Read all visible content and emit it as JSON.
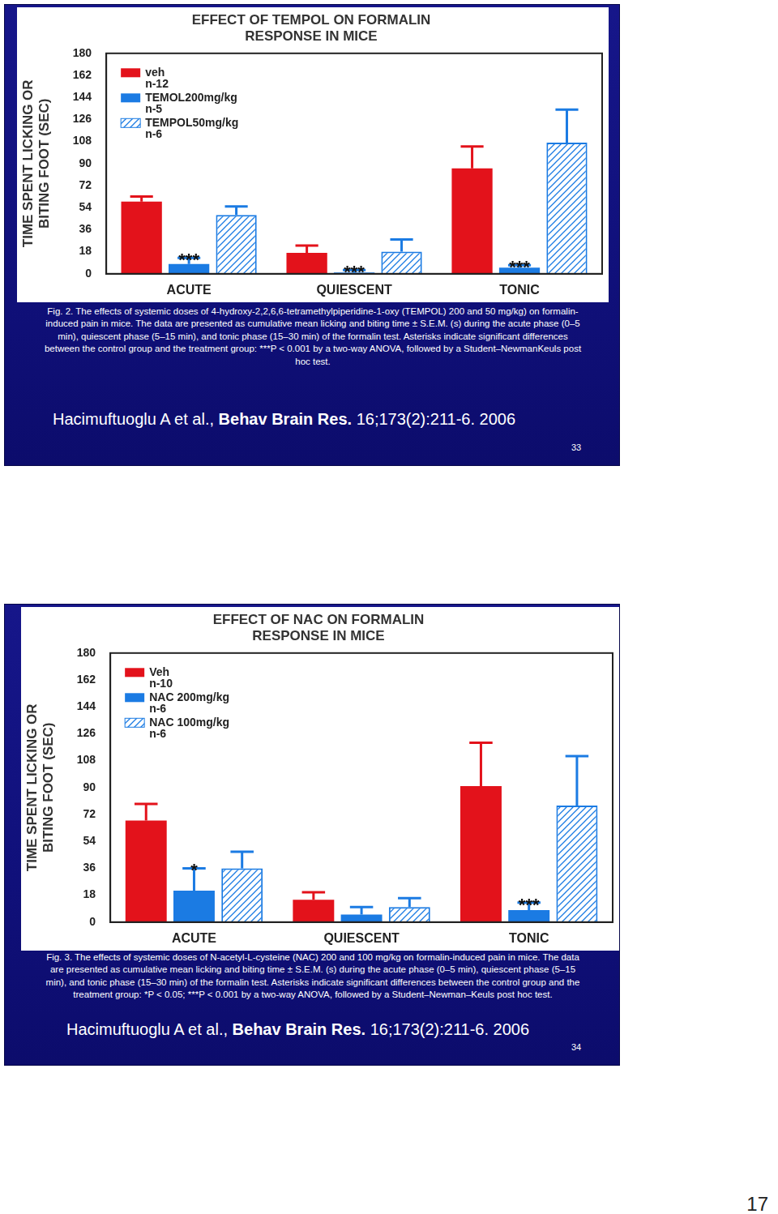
{
  "chart_data": [
    {
      "type": "bar",
      "title": [
        "EFFECT OF TEMPOL ON FORMALIN",
        "RESPONSE IN MICE"
      ],
      "y_label": [
        "TIME SPENT LICKING OR",
        "BITING FOOT (SEC)"
      ],
      "categories": [
        "ACUTE",
        "QUIESCENT",
        "TONIC"
      ],
      "series": [
        {
          "name": "veh",
          "n": "n-12",
          "color": "#e3121b",
          "marker": "solid",
          "values": [
            59,
            17,
            86
          ],
          "errors": [
            4,
            6,
            18
          ]
        },
        {
          "name": "TEMOL200mg/kg",
          "n": "n-5",
          "color": "#1b7be3",
          "marker": "solid",
          "values": [
            8,
            1,
            5
          ],
          "errors": [
            5,
            2,
            2
          ]
        },
        {
          "name": "TEMPOL50mg/kg",
          "n": "n-6",
          "color": "#1b7be3",
          "marker": "hatch",
          "values": [
            48,
            18,
            107
          ],
          "errors": [
            7,
            10,
            27
          ]
        }
      ],
      "annotations": [
        {
          "text": "***",
          "category": "ACUTE",
          "series": "TEMOL200mg/kg"
        },
        {
          "text": "***",
          "category": "QUIESCENT",
          "series": "TEMOL200mg/kg"
        },
        {
          "text": "***",
          "category": "TONIC",
          "series": "TEMOL200mg/kg"
        }
      ],
      "ylim": [
        0,
        180
      ],
      "yticks": [
        0,
        18,
        36,
        54,
        72,
        90,
        108,
        126,
        144,
        162,
        180
      ],
      "grid": false,
      "legend": "upper left"
    },
    {
      "type": "bar",
      "title": [
        "EFFECT OF NAC ON FORMALIN",
        "RESPONSE IN MICE"
      ],
      "y_label": [
        "TIME SPENT LICKING OR",
        "BITING FOOT (SEC)"
      ],
      "categories": [
        "ACUTE",
        "QUIESCENT",
        "TONIC"
      ],
      "series": [
        {
          "name": "Veh",
          "n": "n-10",
          "color": "#e3121b",
          "marker": "solid",
          "values": [
            68,
            15,
            91
          ],
          "errors": [
            11,
            5,
            29
          ]
        },
        {
          "name": "NAC 200mg/kg",
          "n": "n-6",
          "color": "#1b7be3",
          "marker": "solid",
          "values": [
            21,
            5,
            8
          ],
          "errors": [
            15,
            5,
            5
          ]
        },
        {
          "name": "NAC 100mg/kg",
          "n": "n-6",
          "color": "#1b7be3",
          "marker": "hatch",
          "values": [
            36,
            10,
            78
          ],
          "errors": [
            11,
            6,
            33
          ]
        }
      ],
      "annotations": [
        {
          "text": "*",
          "category": "ACUTE",
          "series": "NAC 200mg/kg"
        },
        {
          "text": "***",
          "category": "TONIC",
          "series": "NAC 200mg/kg"
        }
      ],
      "ylim": [
        0,
        180
      ],
      "yticks": [
        0,
        18,
        36,
        54,
        72,
        90,
        108,
        126,
        144,
        162,
        180
      ],
      "grid": false,
      "legend": "upper left"
    }
  ],
  "slides": [
    {
      "caption": "Fig. 2. The effects of systemic doses of 4-hydroxy-2,2,6,6-tetramethylpiperidine-1-oxy (TEMPOL) 200 and 50 mg/kg) on formalin-induced pain in mice. The data are presented as cumulative mean licking and biting time ± S.E.M. (s) during the acute phase (0–5 min), quiescent phase (5–15 min), and tonic phase (15–30 min) of the formalin test. Asterisks indicate significant differences between the control group and the treatment group: ***P < 0.001 by a two-way ANOVA, followed by a Student–NewmanKeuls post hoc test.",
      "citation": {
        "authors": "Hacimuftuoglu A et al.,",
        "journal": "Behav Brain Res.",
        "details": "16;173(2):211-6. 2006"
      },
      "slide_number": "33"
    },
    {
      "caption": "Fig. 3. The effects of systemic doses of N-acetyl-L-cysteine (NAC) 200 and 100 mg/kg on formalin-induced pain in mice. The data are presented as cumulative mean licking and biting time ± S.E.M. (s) during the acute phase (0–5 min), quiescent phase (5–15 min), and tonic phase (15–30 min) of the formalin test. Asterisks indicate significant differences between the control group and the treatment group: *P < 0.05; ***P < 0.001 by a two-way ANOVA, followed by a Student–Newman–Keuls post hoc test.",
      "citation": {
        "authors": "Hacimuftuoglu A et al.,",
        "journal": "Behav Brain Res.",
        "details": "16;173(2):211-6. 2006"
      },
      "slide_number": "34"
    }
  ],
  "page_number": "17"
}
